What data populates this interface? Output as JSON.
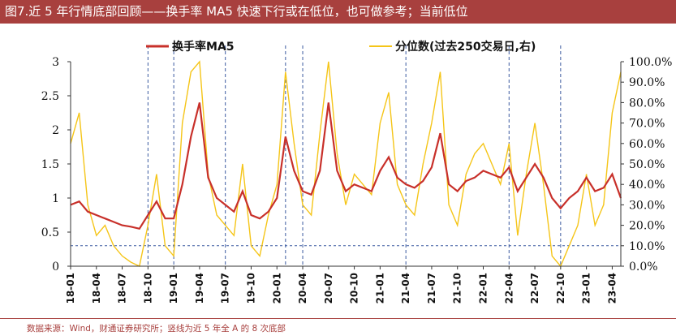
{
  "title": "图7.近 5 年行情底部回顾——换手率 MA5 快速下行或在低位，也可做参考；当前低位",
  "source": "数据来源：Wind，财通证券研究所；竖线为近 5 年全 A 的 8 次底部",
  "colors": {
    "header": "#a8403e",
    "turnover": "#c8302a",
    "percentile": "#f5c518",
    "vline": "#3b5aa0",
    "hline": "#3b5aa0"
  },
  "chart_data": {
    "type": "line",
    "legend_placement": "top",
    "series": [
      {
        "name": "换手率MA5",
        "axis": "left",
        "x": [
          "18-01",
          "18-02",
          "18-03",
          "18-04",
          "18-05",
          "18-06",
          "18-07",
          "18-08",
          "18-09",
          "18-10",
          "18-11",
          "18-12",
          "19-01",
          "19-02",
          "19-03",
          "19-04",
          "19-05",
          "19-06",
          "19-07",
          "19-08",
          "19-09",
          "19-10",
          "19-11",
          "19-12",
          "20-01",
          "20-02",
          "20-03",
          "20-04",
          "20-05",
          "20-06",
          "20-07",
          "20-08",
          "20-09",
          "20-10",
          "20-11",
          "20-12",
          "21-01",
          "21-02",
          "21-03",
          "21-04",
          "21-05",
          "21-06",
          "21-07",
          "21-08",
          "21-09",
          "21-10",
          "21-11",
          "21-12",
          "22-01",
          "22-02",
          "22-03",
          "22-04",
          "22-05",
          "22-06",
          "22-07",
          "22-08",
          "22-09",
          "22-10",
          "22-11",
          "22-12",
          "23-01",
          "23-02",
          "23-03",
          "23-04",
          "23-05"
        ],
        "values": [
          0.9,
          0.95,
          0.8,
          0.75,
          0.7,
          0.65,
          0.6,
          0.58,
          0.55,
          0.75,
          0.95,
          0.7,
          0.7,
          1.2,
          1.9,
          2.4,
          1.3,
          1.0,
          0.9,
          0.8,
          1.1,
          0.75,
          0.7,
          0.8,
          1.0,
          1.9,
          1.4,
          1.1,
          1.05,
          1.4,
          2.4,
          1.4,
          1.1,
          1.2,
          1.15,
          1.1,
          1.4,
          1.6,
          1.3,
          1.2,
          1.15,
          1.25,
          1.45,
          1.95,
          1.2,
          1.1,
          1.25,
          1.3,
          1.4,
          1.35,
          1.3,
          1.45,
          1.1,
          1.3,
          1.5,
          1.3,
          1.0,
          0.85,
          1.0,
          1.1,
          1.3,
          1.1,
          1.15,
          1.35,
          1.0
        ]
      },
      {
        "name": "分位数(过去250交易日,右)",
        "axis": "right",
        "x": [
          "18-01",
          "18-02",
          "18-03",
          "18-04",
          "18-05",
          "18-06",
          "18-07",
          "18-08",
          "18-09",
          "18-10",
          "18-11",
          "18-12",
          "19-01",
          "19-02",
          "19-03",
          "19-04",
          "19-05",
          "19-06",
          "19-07",
          "19-08",
          "19-09",
          "19-10",
          "19-11",
          "19-12",
          "20-01",
          "20-02",
          "20-03",
          "20-04",
          "20-05",
          "20-06",
          "20-07",
          "20-08",
          "20-09",
          "20-10",
          "20-11",
          "20-12",
          "21-01",
          "21-02",
          "21-03",
          "21-04",
          "21-05",
          "21-06",
          "21-07",
          "21-08",
          "21-09",
          "21-10",
          "21-11",
          "21-12",
          "22-01",
          "22-02",
          "22-03",
          "22-04",
          "22-05",
          "22-06",
          "22-07",
          "22-08",
          "22-09",
          "22-10",
          "22-11",
          "22-12",
          "23-01",
          "23-02",
          "23-03",
          "23-04",
          "23-05"
        ],
        "values": [
          60,
          75,
          30,
          15,
          20,
          10,
          5,
          2,
          0,
          20,
          45,
          10,
          5,
          70,
          95,
          100,
          45,
          25,
          20,
          15,
          50,
          10,
          5,
          25,
          40,
          95,
          60,
          30,
          25,
          65,
          100,
          55,
          30,
          45,
          40,
          35,
          70,
          85,
          40,
          30,
          25,
          50,
          70,
          95,
          30,
          20,
          45,
          55,
          60,
          50,
          40,
          60,
          15,
          45,
          70,
          40,
          5,
          0,
          10,
          20,
          45,
          20,
          30,
          75,
          95
        ]
      }
    ],
    "y_left": {
      "min": 0,
      "max": 3,
      "ticks": [
        "0",
        "0.5",
        "1",
        "1.5",
        "2",
        "2.5",
        "3"
      ]
    },
    "y_right": {
      "min": 0,
      "max": 100,
      "ticks": [
        "0.0%",
        "10.0%",
        "20.0%",
        "30.0%",
        "40.0%",
        "50.0%",
        "60.0%",
        "70.0%",
        "80.0%",
        "90.0%",
        "100.0%"
      ]
    },
    "x_ticks": [
      "18-01",
      "18-04",
      "18-07",
      "18-10",
      "19-01",
      "19-04",
      "19-07",
      "19-10",
      "20-01",
      "20-04",
      "20-07",
      "20-10",
      "21-01",
      "21-04",
      "21-07",
      "21-10",
      "22-01",
      "22-04",
      "22-07",
      "22-10",
      "23-01",
      "23-04"
    ],
    "bottom_lines": [
      "18-10",
      "19-01",
      "19-07",
      "20-02",
      "20-04",
      "21-04",
      "22-04",
      "22-10"
    ],
    "reference_line_right": 10
  }
}
